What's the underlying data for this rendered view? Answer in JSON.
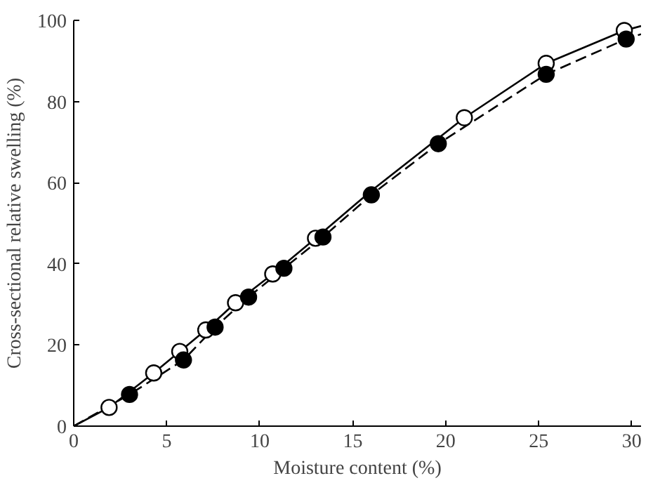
{
  "chart_data": {
    "type": "scatter",
    "xlabel": "Moisture content (%)",
    "ylabel": "Cross-sectional relative swelling (%)",
    "xlim": [
      0,
      30.5
    ],
    "ylim": [
      0,
      100
    ],
    "xticks": [
      0,
      5,
      10,
      15,
      20,
      25,
      30
    ],
    "yticks": [
      0,
      20,
      40,
      60,
      80,
      100
    ],
    "marker": "circle",
    "series": [
      {
        "type": "line",
        "color": "#000000",
        "line_style": "solid",
        "marker": "none",
        "x": [
          0,
          1.9,
          4.3,
          5.7,
          7.1,
          8.7,
          10.7,
          13.0,
          16.0,
          21.0,
          25.4,
          29.6,
          30.5
        ],
        "values": [
          0,
          4.6,
          13.1,
          18.4,
          23.7,
          30.4,
          37.5,
          46.3,
          58.0,
          76.0,
          89.4,
          97.5,
          98.6
        ]
      },
      {
        "type": "line",
        "color": "#000000",
        "line_style": "dashed",
        "marker": "none",
        "x": [
          0,
          3.0,
          5.9,
          7.6,
          9.4,
          11.3,
          13.4,
          16.0,
          19.6,
          25.4,
          29.7,
          30.5
        ],
        "values": [
          0,
          7.8,
          16.3,
          24.4,
          31.8,
          38.9,
          46.6,
          57.0,
          69.6,
          86.7,
          95.4,
          96.6
        ]
      },
      {
        "color": "#ffffff",
        "x": [
          1.9,
          4.3,
          5.7,
          7.1,
          8.7,
          10.7,
          13.0,
          16.0,
          21.0,
          25.4,
          29.6
        ],
        "values": [
          4.6,
          13.1,
          18.4,
          23.7,
          30.4,
          37.5,
          46.3,
          null,
          76.0,
          89.4,
          97.5
        ]
      },
      {
        "color": "#000000",
        "x": [
          3.0,
          5.9,
          7.6,
          9.4,
          11.3,
          13.4,
          16.0,
          19.6,
          25.4,
          29.7
        ],
        "values": [
          7.8,
          16.3,
          24.4,
          31.8,
          38.9,
          46.6,
          57.0,
          69.6,
          86.7,
          95.4
        ]
      }
    ]
  }
}
